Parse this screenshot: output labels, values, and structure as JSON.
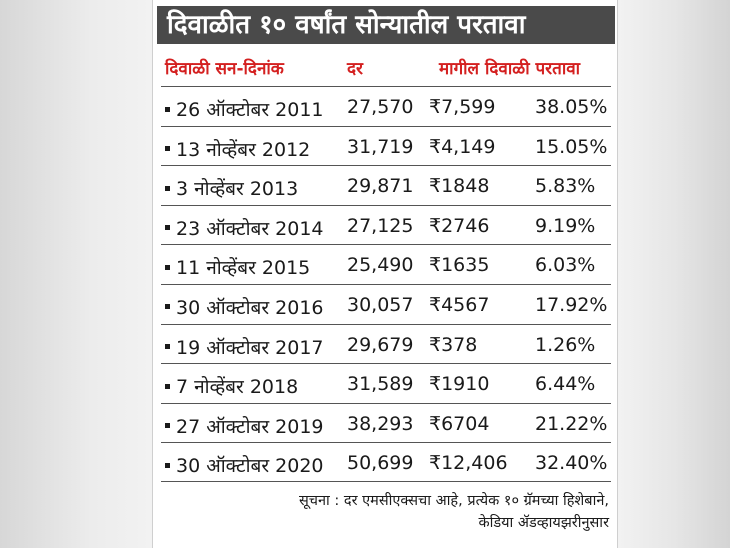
{
  "title": "दिवाळीत १० वर्षांत सोन्यातील परतावा",
  "headers": {
    "date": "दिवाळी सन-दिनांक",
    "rate": "दर",
    "return": "मागील दिवाळी परतावा"
  },
  "rows": [
    {
      "date": "26 ऑक्टोबर 2011",
      "rate": "27,570",
      "amount": "₹7,599",
      "percent": "38.05%"
    },
    {
      "date": "13 नोव्हेंबर 2012",
      "rate": "31,719",
      "amount": "₹4,149",
      "percent": "15.05%"
    },
    {
      "date": "3 नोव्हेंबर 2013",
      "rate": "29,871",
      "amount": "₹1848",
      "percent": "5.83%"
    },
    {
      "date": "23 ऑक्टोबर 2014",
      "rate": "27,125",
      "amount": "₹2746",
      "percent": "9.19%"
    },
    {
      "date": "11 नोव्हेंबर 2015",
      "rate": "25,490",
      "amount": "₹1635",
      "percent": "6.03%"
    },
    {
      "date": "30 ऑक्टोबर 2016",
      "rate": "30,057",
      "amount": "₹4567",
      "percent": "17.92%"
    },
    {
      "date": "19 ऑक्टोबर 2017",
      "rate": "29,679",
      "amount": "₹378",
      "percent": "1.26%"
    },
    {
      "date": "7 नोव्हेंबर 2018",
      "rate": "31,589",
      "amount": "₹1910",
      "percent": "6.44%"
    },
    {
      "date": "27 ऑक्टोबर 2019",
      "rate": "38,293",
      "amount": "₹6704",
      "percent": "21.22%"
    },
    {
      "date": "30 ऑक्टोबर 2020",
      "rate": "50,699",
      "amount": "₹12,406",
      "percent": "32.40%"
    }
  ],
  "note": {
    "line1": "सूचना : दर एमसीएक्सचा आहे, प्रत्येक १० ग्रॅमच्या हिशेबाने,",
    "line2": "केडिया ॲडव्हायझरीनुसार"
  }
}
